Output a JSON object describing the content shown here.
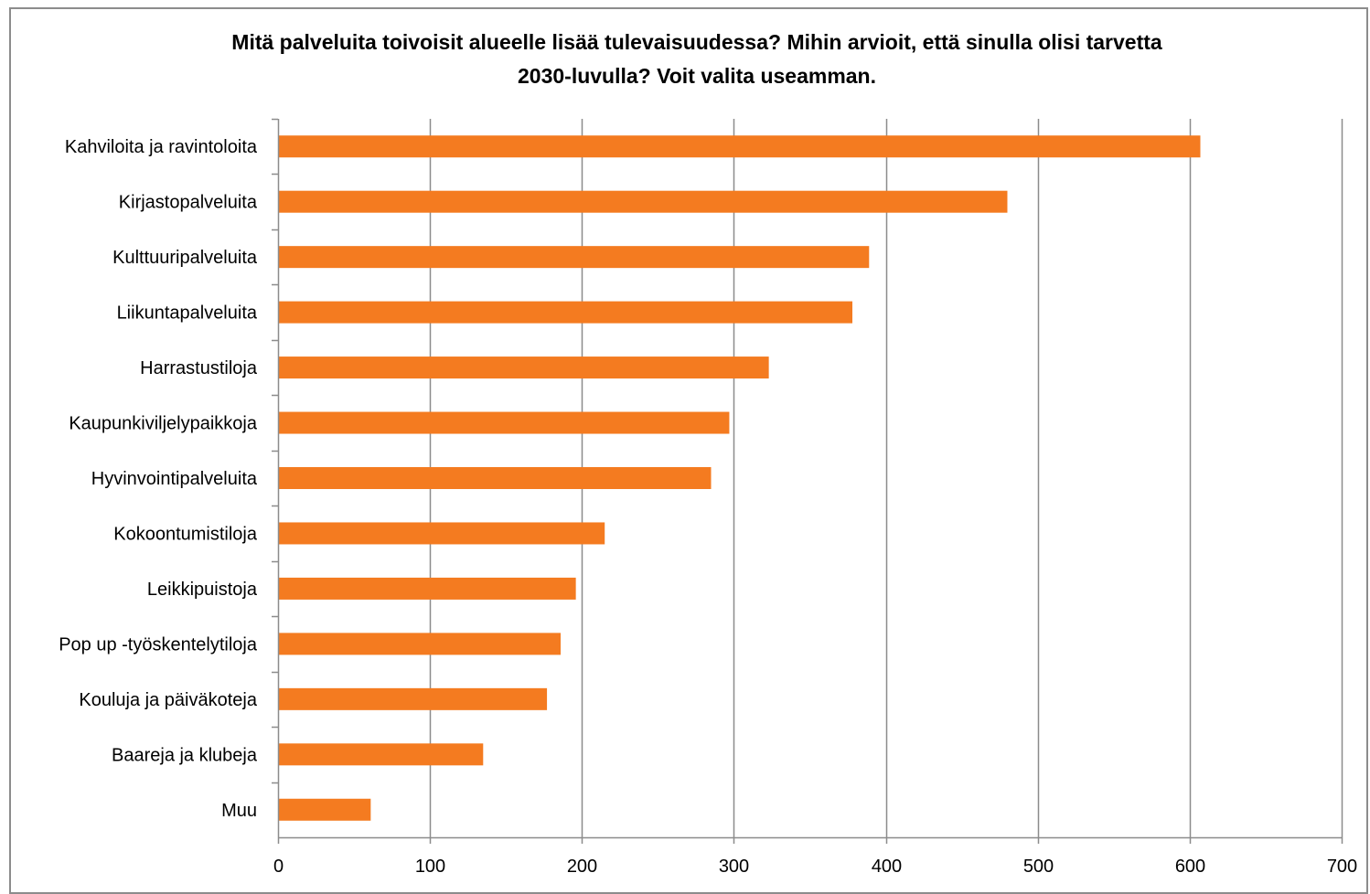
{
  "chart_data": {
    "type": "bar",
    "orientation": "horizontal",
    "title_lines": [
      "Mitä palveluita toivoisit alueelle lisää tulevaisuudessa? Mihin arvioit, että sinulla olisi tarvetta",
      "2030-luvulla? Voit valita useamman."
    ],
    "categories": [
      "Kahviloita ja ravintoloita",
      "Kirjastopalveluita",
      "Kulttuuripalveluita",
      "Liikuntapalveluita",
      "Harrastustiloja",
      "Kaupunkiviljelypaikkoja",
      "Hyvinvointipalveluita",
      "Kokoontumistiloja",
      "Leikkipuistoja",
      "Pop up -työskentelytiloja",
      "Kouluja ja päiväkoteja",
      "Baareja ja klubeja",
      "Muu"
    ],
    "values": [
      607,
      480,
      389,
      378,
      323,
      297,
      285,
      215,
      196,
      186,
      177,
      135,
      61
    ],
    "xlim": [
      0,
      700
    ],
    "xticks": [
      "0",
      "100",
      "200",
      "300",
      "400",
      "500",
      "600",
      "700"
    ],
    "grid": "vertical",
    "bar_color": "#f47b20",
    "grid_color": "#8c8c8c"
  }
}
